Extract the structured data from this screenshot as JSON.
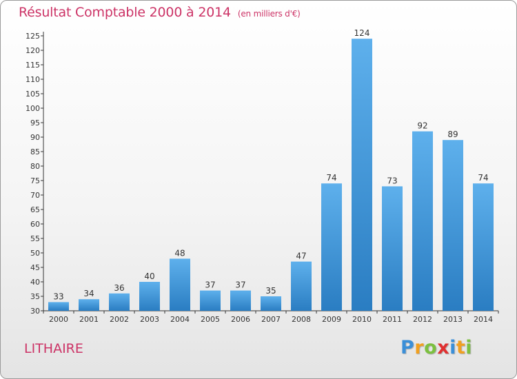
{
  "chart_data": {
    "type": "bar",
    "title": "Résultat Comptable 2000 à 2014",
    "subtitle": "(en milliers d'€)",
    "categories": [
      "2000",
      "2001",
      "2002",
      "2003",
      "2004",
      "2005",
      "2006",
      "2007",
      "2008",
      "2009",
      "2010",
      "2011",
      "2012",
      "2013",
      "2014"
    ],
    "values": [
      33,
      34,
      36,
      40,
      48,
      37,
      37,
      35,
      47,
      74,
      124,
      73,
      92,
      89,
      74
    ],
    "ylim": [
      30,
      125
    ],
    "ytick_step": 5,
    "xlabel": "",
    "ylabel": "",
    "grid": false
  },
  "commune": "LITHAIRE",
  "logo": {
    "letters": [
      "P",
      "r",
      "o",
      "x",
      "i",
      "t",
      "i"
    ],
    "colors": [
      "#3a8fd8",
      "#f0a020",
      "#7cc040",
      "#e03030",
      "#3a8fd8",
      "#f0a020",
      "#7cc040"
    ]
  },
  "colors": {
    "title": "#cc3366",
    "bar_light": "#5eb0ec",
    "bar_dark": "#2a7dc2",
    "axis": "#333333"
  }
}
